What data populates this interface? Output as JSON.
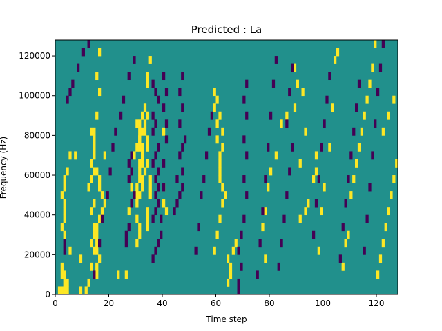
{
  "chart_data": {
    "type": "heatmap",
    "title": "Predicted : La",
    "xlabel": "Time step",
    "ylabel": "Frequency (Hz)",
    "xlim": [
      0,
      128
    ],
    "ylim": [
      0,
      128000
    ],
    "xticks": [
      0,
      20,
      40,
      60,
      80,
      100,
      120
    ],
    "yticks": [
      0,
      20000,
      40000,
      60000,
      80000,
      100000,
      120000
    ],
    "xtick_labels": [
      "0",
      "20",
      "40",
      "60",
      "80",
      "100",
      "120"
    ],
    "ytick_labels": [
      "0",
      "20000",
      "40000",
      "60000",
      "80000",
      "100000",
      "120000"
    ],
    "grid": false,
    "legend": "none",
    "colormap": {
      "low": "#440154",
      "mid": "#21908c",
      "high": "#fde725"
    },
    "background_value": 0,
    "n_time_steps": 128,
    "n_frequency_bins": 32,
    "bin_height_hz": 4000,
    "cells": {
      "high": [
        [
          1,
          0
        ],
        [
          2,
          0
        ],
        [
          3,
          0
        ],
        [
          4,
          0
        ],
        [
          3,
          1
        ],
        [
          4,
          1
        ],
        [
          2,
          2
        ],
        [
          3,
          2
        ],
        [
          2,
          3
        ],
        [
          5,
          5
        ],
        [
          3,
          7
        ],
        [
          2,
          8
        ],
        [
          3,
          9
        ],
        [
          3,
          10
        ],
        [
          3,
          11
        ],
        [
          2,
          12
        ],
        [
          3,
          13
        ],
        [
          3,
          14
        ],
        [
          4,
          15
        ],
        [
          5,
          17
        ],
        [
          7,
          17
        ],
        [
          9,
          0
        ],
        [
          11,
          0
        ],
        [
          12,
          1
        ],
        [
          9,
          4
        ],
        [
          13,
          3
        ],
        [
          14,
          5
        ],
        [
          13,
          6
        ],
        [
          14,
          7
        ],
        [
          14,
          8
        ],
        [
          13,
          10
        ],
        [
          14,
          11
        ],
        [
          12,
          13
        ],
        [
          13,
          14
        ],
        [
          14,
          15
        ],
        [
          13,
          16
        ],
        [
          14,
          17
        ],
        [
          14,
          18
        ],
        [
          14,
          19
        ],
        [
          13,
          20
        ],
        [
          14,
          20
        ],
        [
          15,
          22
        ],
        [
          16,
          25
        ],
        [
          15,
          27
        ],
        [
          16,
          30
        ],
        [
          15,
          2
        ],
        [
          15,
          3
        ],
        [
          16,
          4
        ],
        [
          15,
          5
        ],
        [
          15,
          6
        ],
        [
          15,
          7
        ],
        [
          15,
          8
        ],
        [
          16,
          9
        ],
        [
          17,
          10
        ],
        [
          18,
          11
        ],
        [
          17,
          12
        ],
        [
          16,
          13
        ],
        [
          16,
          14
        ],
        [
          15,
          15
        ],
        [
          18,
          17
        ],
        [
          23,
          2
        ],
        [
          26,
          2
        ],
        [
          27,
          10
        ],
        [
          28,
          13
        ],
        [
          29,
          17
        ],
        [
          31,
          18
        ],
        [
          31,
          19
        ],
        [
          31,
          20
        ],
        [
          30,
          6
        ],
        [
          30,
          9
        ],
        [
          30,
          11
        ],
        [
          31,
          12
        ],
        [
          32,
          13
        ],
        [
          31,
          14
        ],
        [
          32,
          14
        ],
        [
          33,
          15
        ],
        [
          32,
          16
        ],
        [
          32,
          17
        ],
        [
          31,
          19
        ],
        [
          32,
          20
        ],
        [
          33,
          21
        ],
        [
          32,
          22
        ],
        [
          33,
          23
        ],
        [
          34,
          26
        ],
        [
          34,
          27
        ],
        [
          35,
          29
        ],
        [
          30,
          12
        ],
        [
          30,
          13
        ],
        [
          31,
          15
        ],
        [
          31,
          16
        ],
        [
          30,
          18
        ],
        [
          32,
          18
        ],
        [
          30,
          21
        ],
        [
          31,
          21
        ],
        [
          31,
          7
        ],
        [
          31,
          8
        ],
        [
          34,
          9
        ],
        [
          34,
          10
        ],
        [
          34,
          8
        ],
        [
          35,
          12
        ],
        [
          35,
          13
        ],
        [
          35,
          14
        ],
        [
          34,
          16
        ],
        [
          34,
          18
        ],
        [
          34,
          19
        ],
        [
          33,
          20
        ],
        [
          34,
          22
        ],
        [
          41,
          10
        ],
        [
          40,
          11
        ],
        [
          40,
          13
        ],
        [
          40,
          20
        ],
        [
          59,
          5
        ],
        [
          60,
          7
        ],
        [
          61,
          9
        ],
        [
          62,
          11
        ],
        [
          63,
          12
        ],
        [
          62,
          13
        ],
        [
          61,
          14
        ],
        [
          61,
          15
        ],
        [
          61,
          16
        ],
        [
          61,
          17
        ],
        [
          62,
          18
        ],
        [
          60,
          19
        ],
        [
          62,
          20
        ],
        [
          60,
          21
        ],
        [
          61,
          22
        ],
        [
          59,
          23
        ],
        [
          60,
          24
        ],
        [
          59,
          25
        ],
        [
          64,
          1
        ],
        [
          65,
          2
        ],
        [
          65,
          3
        ],
        [
          64,
          4
        ],
        [
          66,
          5
        ],
        [
          67,
          6
        ],
        [
          78,
          4
        ],
        [
          77,
          8
        ],
        [
          78,
          10
        ],
        [
          79,
          13
        ],
        [
          80,
          15
        ],
        [
          82,
          17
        ],
        [
          84,
          21
        ],
        [
          86,
          22
        ],
        [
          89,
          28
        ],
        [
          90,
          26
        ],
        [
          89,
          23
        ],
        [
          92,
          25
        ],
        [
          91,
          9
        ],
        [
          93,
          10
        ],
        [
          94,
          11
        ],
        [
          91,
          16
        ],
        [
          93,
          20
        ],
        [
          96,
          14
        ],
        [
          97,
          15
        ],
        [
          97,
          17
        ],
        [
          98,
          5
        ],
        [
          99,
          10
        ],
        [
          100,
          13
        ],
        [
          102,
          18
        ],
        [
          103,
          23
        ],
        [
          104,
          29
        ],
        [
          105,
          30
        ],
        [
          107,
          3
        ],
        [
          108,
          6
        ],
        [
          109,
          7
        ],
        [
          110,
          12
        ],
        [
          111,
          14
        ],
        [
          112,
          16
        ],
        [
          113,
          18
        ],
        [
          114,
          20
        ],
        [
          115,
          22
        ],
        [
          116,
          24
        ],
        [
          117,
          26
        ],
        [
          118,
          28
        ],
        [
          119,
          31
        ],
        [
          120,
          2
        ],
        [
          121,
          4
        ],
        [
          122,
          6
        ],
        [
          123,
          8
        ],
        [
          124,
          10
        ],
        [
          125,
          12
        ],
        [
          126,
          14
        ],
        [
          127,
          16
        ],
        [
          122,
          20
        ],
        [
          124,
          22
        ],
        [
          126,
          24
        ]
      ],
      "low": [
        [
          3,
          5
        ],
        [
          3,
          6
        ],
        [
          4,
          24
        ],
        [
          5,
          25
        ],
        [
          6,
          26
        ],
        [
          8,
          28
        ],
        [
          10,
          30
        ],
        [
          12,
          31
        ],
        [
          14,
          2
        ],
        [
          16,
          6
        ],
        [
          17,
          9
        ],
        [
          19,
          12
        ],
        [
          20,
          15
        ],
        [
          21,
          18
        ],
        [
          22,
          20
        ],
        [
          24,
          22
        ],
        [
          25,
          24
        ],
        [
          27,
          27
        ],
        [
          29,
          29
        ],
        [
          26,
          6
        ],
        [
          26,
          7
        ],
        [
          27,
          8
        ],
        [
          28,
          11
        ],
        [
          29,
          12
        ],
        [
          27,
          14
        ],
        [
          28,
          15
        ],
        [
          27,
          16
        ],
        [
          28,
          17
        ],
        [
          36,
          4
        ],
        [
          37,
          5
        ],
        [
          38,
          6
        ],
        [
          36,
          9
        ],
        [
          37,
          10
        ],
        [
          38,
          11
        ],
        [
          37,
          12
        ],
        [
          38,
          13
        ],
        [
          37,
          14
        ],
        [
          38,
          15
        ],
        [
          36,
          16
        ],
        [
          37,
          17
        ],
        [
          38,
          18
        ],
        [
          36,
          20
        ],
        [
          37,
          21
        ],
        [
          36,
          22
        ],
        [
          38,
          24
        ],
        [
          37,
          25
        ],
        [
          36,
          26
        ],
        [
          39,
          7
        ],
        [
          39,
          9
        ],
        [
          40,
          13
        ],
        [
          40,
          16
        ],
        [
          41,
          19
        ],
        [
          41,
          21
        ],
        [
          40,
          23
        ],
        [
          41,
          25
        ],
        [
          40,
          27
        ],
        [
          44,
          10
        ],
        [
          45,
          11
        ],
        [
          46,
          12
        ],
        [
          47,
          13
        ],
        [
          45,
          14
        ],
        [
          47,
          15
        ],
        [
          46,
          17
        ],
        [
          47,
          18
        ],
        [
          48,
          19
        ],
        [
          46,
          21
        ],
        [
          47,
          23
        ],
        [
          46,
          25
        ],
        [
          47,
          27
        ],
        [
          52,
          5
        ],
        [
          53,
          8
        ],
        [
          54,
          12
        ],
        [
          55,
          14
        ],
        [
          56,
          17
        ],
        [
          57,
          20
        ],
        [
          58,
          22
        ],
        [
          68,
          0
        ],
        [
          68,
          1
        ],
        [
          69,
          3
        ],
        [
          68,
          5
        ],
        [
          69,
          7
        ],
        [
          70,
          9
        ],
        [
          71,
          12
        ],
        [
          70,
          14
        ],
        [
          71,
          17
        ],
        [
          70,
          19
        ],
        [
          71,
          22
        ],
        [
          70,
          24
        ],
        [
          71,
          26
        ],
        [
          75,
          2
        ],
        [
          76,
          6
        ],
        [
          77,
          10
        ],
        [
          78,
          14
        ],
        [
          79,
          18
        ],
        [
          80,
          22
        ],
        [
          81,
          26
        ],
        [
          82,
          29
        ],
        [
          83,
          3
        ],
        [
          84,
          6
        ],
        [
          85,
          9
        ],
        [
          86,
          12
        ],
        [
          87,
          15
        ],
        [
          88,
          18
        ],
        [
          86,
          21
        ],
        [
          87,
          25
        ],
        [
          88,
          28
        ],
        [
          96,
          7
        ],
        [
          97,
          11
        ],
        [
          98,
          14
        ],
        [
          99,
          18
        ],
        [
          100,
          21
        ],
        [
          101,
          24
        ],
        [
          102,
          27
        ],
        [
          106,
          4
        ],
        [
          107,
          8
        ],
        [
          108,
          11
        ],
        [
          109,
          14
        ],
        [
          110,
          17
        ],
        [
          111,
          20
        ],
        [
          112,
          23
        ],
        [
          113,
          26
        ],
        [
          115,
          5
        ],
        [
          116,
          9
        ],
        [
          117,
          13
        ],
        [
          118,
          17
        ],
        [
          119,
          21
        ],
        [
          120,
          25
        ],
        [
          121,
          28
        ],
        [
          122,
          31
        ]
      ]
    }
  }
}
